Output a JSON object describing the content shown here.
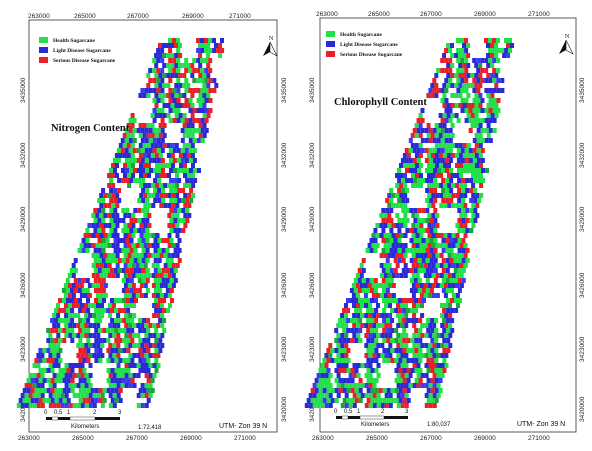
{
  "panels": [
    {
      "id": "left",
      "title": "Nitrogen Content",
      "top_ticks": [
        "263000",
        "265000",
        "267000",
        "269000",
        "271000"
      ],
      "bottom_ticks": [
        "263000",
        "265000",
        "267000",
        "269000",
        "271000"
      ],
      "left_ticks": [
        "3435000",
        "3432000",
        "3429000",
        "3426000",
        "3423000",
        "3420000"
      ],
      "right_ticks": [
        "3435000",
        "3432000",
        "3429000",
        "3426000",
        "3423000",
        "3420000"
      ],
      "legend": [
        {
          "label": "Health Sugarcane",
          "color": "#22e04a"
        },
        {
          "label": "Light Disease Sugarcane",
          "color": "#2a2ad6"
        },
        {
          "label": "Serious Disease Sugarcane",
          "color": "#e8202a"
        }
      ],
      "scale_numbers": [
        "0",
        "0.5",
        "1",
        "2",
        "3"
      ],
      "scale_unit": "Kilometers",
      "scale_ratio": "1:72,418",
      "projection": "UTM- Zon 39 N",
      "north_letter": "N",
      "north_icon": "north-arrow-icon"
    },
    {
      "id": "right",
      "title": "Chlorophyll Content",
      "top_ticks": [
        "263000",
        "265000",
        "267000",
        "269000",
        "271000"
      ],
      "bottom_ticks": [
        "263000",
        "265000",
        "267000",
        "269000",
        "271000"
      ],
      "left_ticks": [
        "3435000",
        "3432000",
        "3429000",
        "3426000",
        "3423000",
        "3420000"
      ],
      "right_ticks": [
        "3435000",
        "3432000",
        "3429000",
        "3426000",
        "3423000",
        "3420000"
      ],
      "legend": [
        {
          "label": "Health Sugarcane",
          "color": "#22e04a"
        },
        {
          "label": "Light Disease Sugarcane",
          "color": "#2a2ad6"
        },
        {
          "label": "Serious Disease Sugarcane",
          "color": "#e8202a"
        }
      ],
      "scale_numbers": [
        "0",
        "0.5",
        "1",
        "2",
        "3"
      ],
      "scale_unit": "Kilometers",
      "scale_ratio": "1:80,037",
      "projection": "UTM- Zon 39 N",
      "north_letter": "N",
      "north_icon": "north-arrow-icon"
    }
  ]
}
